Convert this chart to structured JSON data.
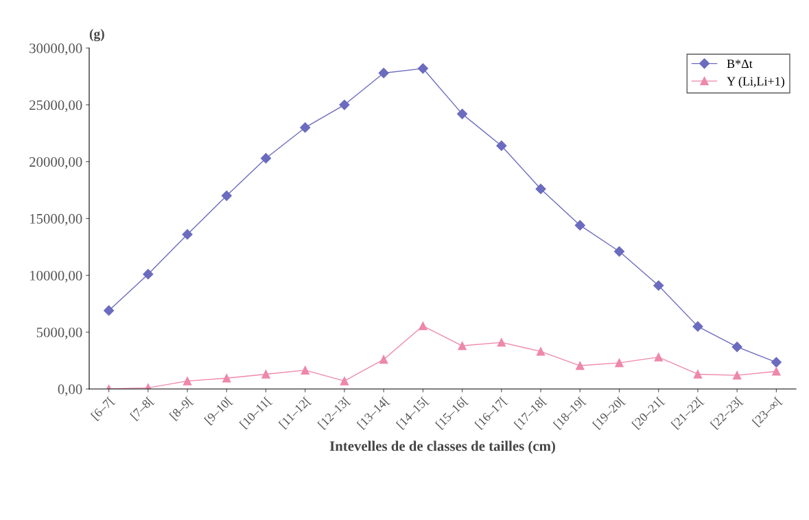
{
  "chart_data": {
    "type": "line",
    "ylabel": "(g)",
    "xlabel": "Intevelles de de classes de tailles (cm)",
    "categories": [
      "[6–7[",
      "[7–8[",
      "[8–9[",
      "[9–10[",
      "[10–11[",
      "[11–12[",
      "[12–13[",
      "[13–14[",
      "[14–15[",
      "[15–16[",
      "[16–17[",
      "[17–18[",
      "[18–19[",
      "[19–20[",
      "[20–21[",
      "[21–22[",
      "[22–23[",
      "[23–∞["
    ],
    "series": [
      {
        "name": "B*Δt",
        "color": "#6b6bbf",
        "marker": "diamond",
        "values": [
          6900,
          10100,
          13600,
          17000,
          20300,
          23000,
          25000,
          27800,
          28200,
          24200,
          21400,
          17600,
          14400,
          12100,
          9100,
          5500,
          3700,
          2350
        ]
      },
      {
        "name": "Y (Li,Li+1)",
        "color": "#ee88aa",
        "marker": "triangle",
        "values": [
          0,
          100,
          700,
          950,
          1300,
          1650,
          700,
          2600,
          5550,
          3800,
          4100,
          3300,
          2050,
          2300,
          2800,
          1300,
          1200,
          1550
        ]
      }
    ],
    "ylim": [
      0,
      30000
    ],
    "yticks": [
      {
        "value": 0,
        "label": "0,00"
      },
      {
        "value": 5000,
        "label": "5000,00"
      },
      {
        "value": 10000,
        "label": "10000,00"
      },
      {
        "value": 15000,
        "label": "15000,00"
      },
      {
        "value": 20000,
        "label": "20000,00"
      },
      {
        "value": 25000,
        "label": "25000,00"
      },
      {
        "value": 30000,
        "label": "30000,00"
      }
    ],
    "legend": "top right",
    "line_style": "solid"
  }
}
